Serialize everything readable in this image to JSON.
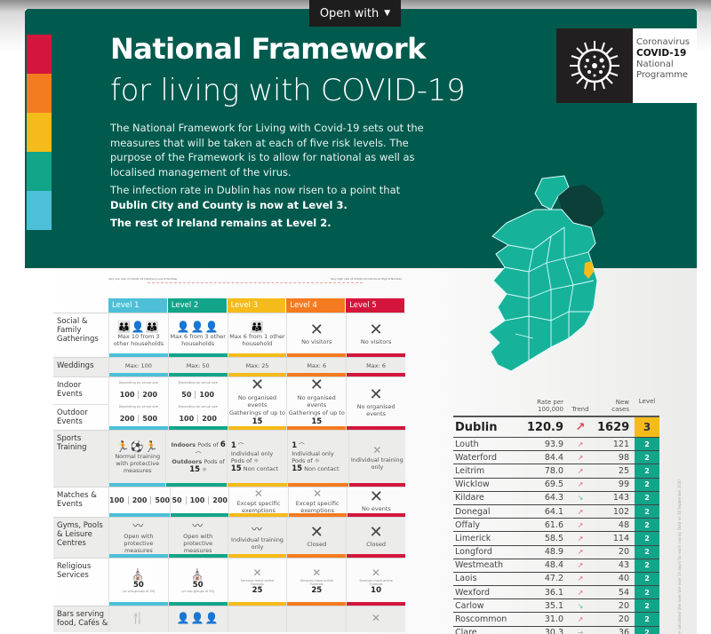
{
  "viewer": {
    "open_with_label": "Open with",
    "open_with_icon": "caret-down-icon"
  },
  "header": {
    "title_line1": "National Framework",
    "title_line2": "for living with COVID-19",
    "level_colors": [
      "#d4163c",
      "#f47b20",
      "#f5bb1a",
      "#12a58a",
      "#4dc0d8"
    ],
    "background_color": "#005a4e"
  },
  "intro": {
    "p1": "The National Framework for Living with Covid-19 sets out the measures that will be taken at each of five risk levels. The purpose of the Framework is to allow for national as well as localised management of the virus.",
    "p2": "The infection rate in Dublin has now risen to a point that",
    "p2_bold": "Dublin City and County is now at Level 3.",
    "p3_bold": "The rest of Ireland remains at Level 2."
  },
  "logo": {
    "icon": "virus-icon",
    "line1": "Coronavirus",
    "line2": "COVID-19",
    "line3": "National",
    "line4": "Programme"
  },
  "scale": {
    "left": "Very low rate of COVID-19 infections Low R Number",
    "right": "Very high rate of COVID-19 infections High R Number"
  },
  "levels": [
    {
      "label": "Level 1",
      "color": "#4dc0d8"
    },
    {
      "label": "Level 2",
      "color": "#12a58a"
    },
    {
      "label": "Level 3",
      "color": "#f5bb1a"
    },
    {
      "label": "Level 4",
      "color": "#f47b20"
    },
    {
      "label": "Level 5",
      "color": "#d4163c"
    }
  ],
  "rows": {
    "social": {
      "label": "Social & Family Gatherings",
      "l1": "Max 10 from 3 other households",
      "l2": "Max 6 from 3 other households",
      "l3": "Max 6 from 1 other household",
      "l4": "No visitors",
      "l5": "No visitors"
    },
    "weddings": {
      "label": "Weddings",
      "l1": "Max: 100",
      "l2": "Max: 50",
      "l3": "Max: 25",
      "l4": "Max: 6",
      "l5": "Max: 6"
    },
    "indoor": {
      "label": "Indoor Events",
      "note": "Depending on venue size",
      "l1a": "100",
      "l1b": "200",
      "l2a": "50",
      "l2b": "100",
      "l3": "No organised events",
      "l4": "No organised events"
    },
    "outdoor": {
      "label": "Outdoor Events",
      "note": "Depending on venue size",
      "l1a": "200",
      "l1b": "500",
      "l2a": "100",
      "l2b": "200",
      "l3_text": "Gatherings of up to",
      "l3_num": "15",
      "l4_text": "Gatherings of up to",
      "l4_num": "15",
      "l5": "No organised events"
    },
    "sports": {
      "label": "Sports Training",
      "l1": "Normal training with protective measures",
      "l2_indoor_label": "Indoors",
      "l2_indoor_text": "Pods of",
      "l2_indoor_num": "6",
      "l2_outdoor_label": "Outdoors",
      "l2_outdoor_text": "Pods of",
      "l2_outdoor_num": "15",
      "l3_num": "1",
      "l3_text": "Individual only",
      "l3_pods": "Pods of",
      "l3_pods_num": "15",
      "l3_nc": "Non contact",
      "l4_num": "1",
      "l4_text": "Individual only",
      "l4_pods": "Pods of",
      "l4_pods_num": "15",
      "l4_nc": "Non contact",
      "l5": "Individual training only"
    },
    "matches": {
      "label": "Matches & Events",
      "l1": [
        "100",
        "200",
        "500"
      ],
      "l2": [
        "50",
        "100",
        "200"
      ],
      "sub": [
        "indoor",
        "outdoor",
        "stadia"
      ],
      "l3": "Except specific exemptions",
      "l4": "Except specific exemptions",
      "l5": "No events"
    },
    "gyms": {
      "label": "Gyms, Pools & Leisure Centres",
      "l1": "Open with protective measures",
      "l2": "Open with protective measures",
      "l3": "Individual training only",
      "l4": "Closed",
      "l5": "Closed"
    },
    "religious": {
      "label": "Religious Services",
      "l1_num": "50",
      "l1_text": "(or sub-groups of 50)",
      "l2_num": "50",
      "l2_text": "(or sub-groups of 50)",
      "online": "Services move online",
      "funerals": "Funerals",
      "l3_num": "25",
      "l4_num": "25",
      "l5_num": "10"
    },
    "bars": {
      "label": "Bars serving food, Cafés &"
    }
  },
  "county_table": {
    "headers": [
      "",
      "Rate per 100,000",
      "Trend",
      "New cases",
      "Level"
    ],
    "featured": {
      "name": "Dublin",
      "rate": "120.9",
      "trend": "↗",
      "cases": "1629",
      "level": "3"
    },
    "rows": [
      {
        "name": "Louth",
        "rate": "93.9",
        "trend": "↗",
        "cases": "121",
        "level": "2"
      },
      {
        "name": "Waterford",
        "rate": "84.4",
        "trend": "↗",
        "cases": "98",
        "level": "2"
      },
      {
        "name": "Leitrim",
        "rate": "78.0",
        "trend": "↗",
        "cases": "25",
        "level": "2"
      },
      {
        "name": "Wicklow",
        "rate": "69.5",
        "trend": "↗",
        "cases": "99",
        "level": "2"
      },
      {
        "name": "Kildare",
        "rate": "64.3",
        "trend": "↘",
        "cases": "143",
        "level": "2"
      },
      {
        "name": "Donegal",
        "rate": "64.1",
        "trend": "↗",
        "cases": "102",
        "level": "2"
      },
      {
        "name": "Offaly",
        "rate": "61.6",
        "trend": "↗",
        "cases": "48",
        "level": "2"
      },
      {
        "name": "Limerick",
        "rate": "58.5",
        "trend": "↗",
        "cases": "114",
        "level": "2"
      },
      {
        "name": "Longford",
        "rate": "48.9",
        "trend": "↗",
        "cases": "20",
        "level": "2"
      },
      {
        "name": "Westmeath",
        "rate": "48.4",
        "trend": "↗",
        "cases": "43",
        "level": "2"
      },
      {
        "name": "Laois",
        "rate": "47.2",
        "trend": "↗",
        "cases": "40",
        "level": "2"
      },
      {
        "name": "Wexford",
        "rate": "36.1",
        "trend": "↗",
        "cases": "54",
        "level": "2"
      },
      {
        "name": "Carlow",
        "rate": "35.1",
        "trend": "↘",
        "cases": "20",
        "level": "2"
      },
      {
        "name": "Roscommon",
        "rate": "31.0",
        "trend": "↗",
        "cases": "20",
        "level": "2"
      },
      {
        "name": "Clare",
        "rate": "30.3",
        "trend": "→",
        "cases": "36",
        "level": "2"
      }
    ],
    "side_note": "Rate calculated (the new rate over 14 days) for each county. Data on 18 September 2020"
  }
}
